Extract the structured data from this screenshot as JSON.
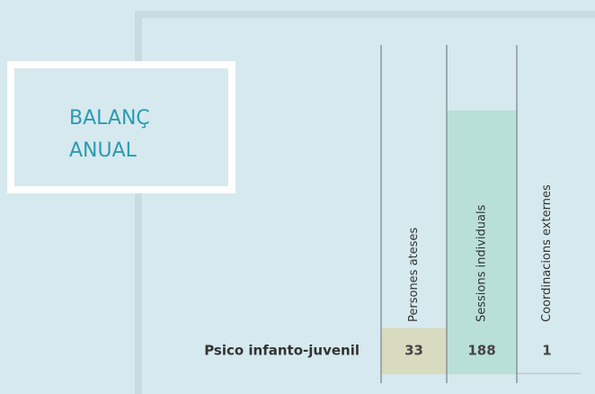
{
  "chart_data": {
    "type": "bar",
    "title": "BALANÇ ANUAL",
    "categories": [
      "Persones ateses",
      "Sessions individuals",
      "Coordinacions externes"
    ],
    "colors": [
      "#d8dbbf",
      "#b9e0d8",
      "#c4c7d0"
    ],
    "series": [
      {
        "name": "Psico infanto-juvenil",
        "values": [
          33,
          188,
          1
        ]
      }
    ],
    "ylim": [
      0,
      200
    ]
  }
}
